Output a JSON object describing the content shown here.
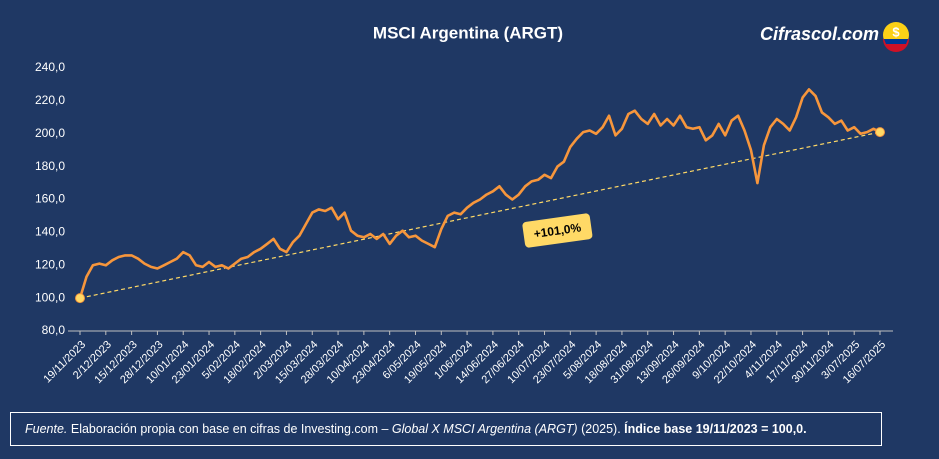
{
  "chart_data": {
    "type": "line",
    "title": "MSCI Argentina (ARGT)",
    "categories": [
      "19/11/2023",
      null,
      null,
      null,
      "2/12/2023",
      null,
      null,
      null,
      "15/12/2023",
      null,
      null,
      null,
      "28/12/2023",
      null,
      null,
      null,
      "10/01/2024",
      null,
      null,
      null,
      "23/01/2024",
      null,
      null,
      null,
      "5/02/2024",
      null,
      null,
      null,
      "18/02/2024",
      null,
      null,
      null,
      "2/03/2024",
      null,
      null,
      null,
      "15/03/2024",
      null,
      null,
      null,
      "28/03/2024",
      null,
      null,
      null,
      "10/04/2024",
      null,
      null,
      null,
      "23/04/2024",
      null,
      null,
      null,
      "6/05/2024",
      null,
      null,
      null,
      "19/05/2024",
      null,
      null,
      null,
      "1/06/2024",
      null,
      null,
      null,
      "14/06/2024",
      null,
      null,
      null,
      "27/06/2024",
      null,
      null,
      null,
      "10/07/2024",
      null,
      null,
      null,
      "23/07/2024",
      null,
      null,
      null,
      "5/08/2024",
      null,
      null,
      null,
      "18/08/2024",
      null,
      null,
      null,
      "31/08/2024",
      null,
      null,
      null,
      "13/09/2024",
      null,
      null,
      null,
      "26/09/2024",
      null,
      null,
      null,
      "9/10/2024",
      null,
      null,
      null,
      "22/10/2024",
      null,
      null,
      null,
      "4/11/2024",
      null,
      null,
      null,
      "17/11/2024",
      null,
      null,
      null,
      "30/11/2024",
      null,
      null,
      null,
      "3/07/2025",
      null,
      null,
      null,
      "16/07/2025"
    ],
    "series": [
      {
        "color": "#f7963c",
        "values": [
          100,
          113,
          120,
          121,
          120,
          123,
          125,
          126,
          126,
          124,
          121,
          119,
          118,
          120,
          122,
          124,
          128,
          126,
          120,
          119,
          122,
          119,
          120,
          118,
          121,
          124,
          125,
          128,
          130,
          133,
          136,
          130,
          128,
          134,
          138,
          145,
          152,
          154,
          153,
          155,
          148,
          152,
          141,
          138,
          137,
          139,
          136,
          139,
          133,
          138,
          141,
          137,
          138,
          135,
          133,
          131,
          142,
          150,
          152,
          151,
          155,
          158,
          160,
          163,
          165,
          168,
          163,
          160,
          163,
          168,
          171,
          172,
          175,
          173,
          180,
          183,
          192,
          197,
          201,
          202,
          200,
          204,
          211,
          199,
          203,
          212,
          214,
          209,
          206,
          212,
          205,
          209,
          205,
          211,
          204,
          203,
          204,
          196,
          199,
          206,
          199,
          208,
          211,
          202,
          190,
          170,
          193,
          204,
          209,
          206,
          202,
          210,
          222,
          227,
          223,
          213,
          210,
          206,
          208,
          202,
          204,
          200,
          201,
          203,
          201
        ]
      }
    ],
    "ylim": [
      80,
      240
    ],
    "yticks": [
      {
        "value": 80,
        "label": "80,0"
      },
      {
        "value": 100,
        "label": "100,0"
      },
      {
        "value": 120,
        "label": "120,0"
      },
      {
        "value": 140,
        "label": "140,0"
      },
      {
        "value": 160,
        "label": "160,0"
      },
      {
        "value": 180,
        "label": "180,0"
      },
      {
        "value": 200,
        "label": "200,0"
      },
      {
        "value": 220,
        "label": "220,0"
      },
      {
        "value": 240,
        "label": "240,0"
      }
    ],
    "annotation": "+101,0%"
  },
  "logo": "Cifrascol.com",
  "source": {
    "lead": "Fuente.",
    "text1": " Elaboración propia con base en cifras de Investing.com – ",
    "work": "Global X MSCI Argentina (ARGT)",
    "text2": " (2025). ",
    "note": "Índice base 19/11/2023 = 100,0."
  }
}
